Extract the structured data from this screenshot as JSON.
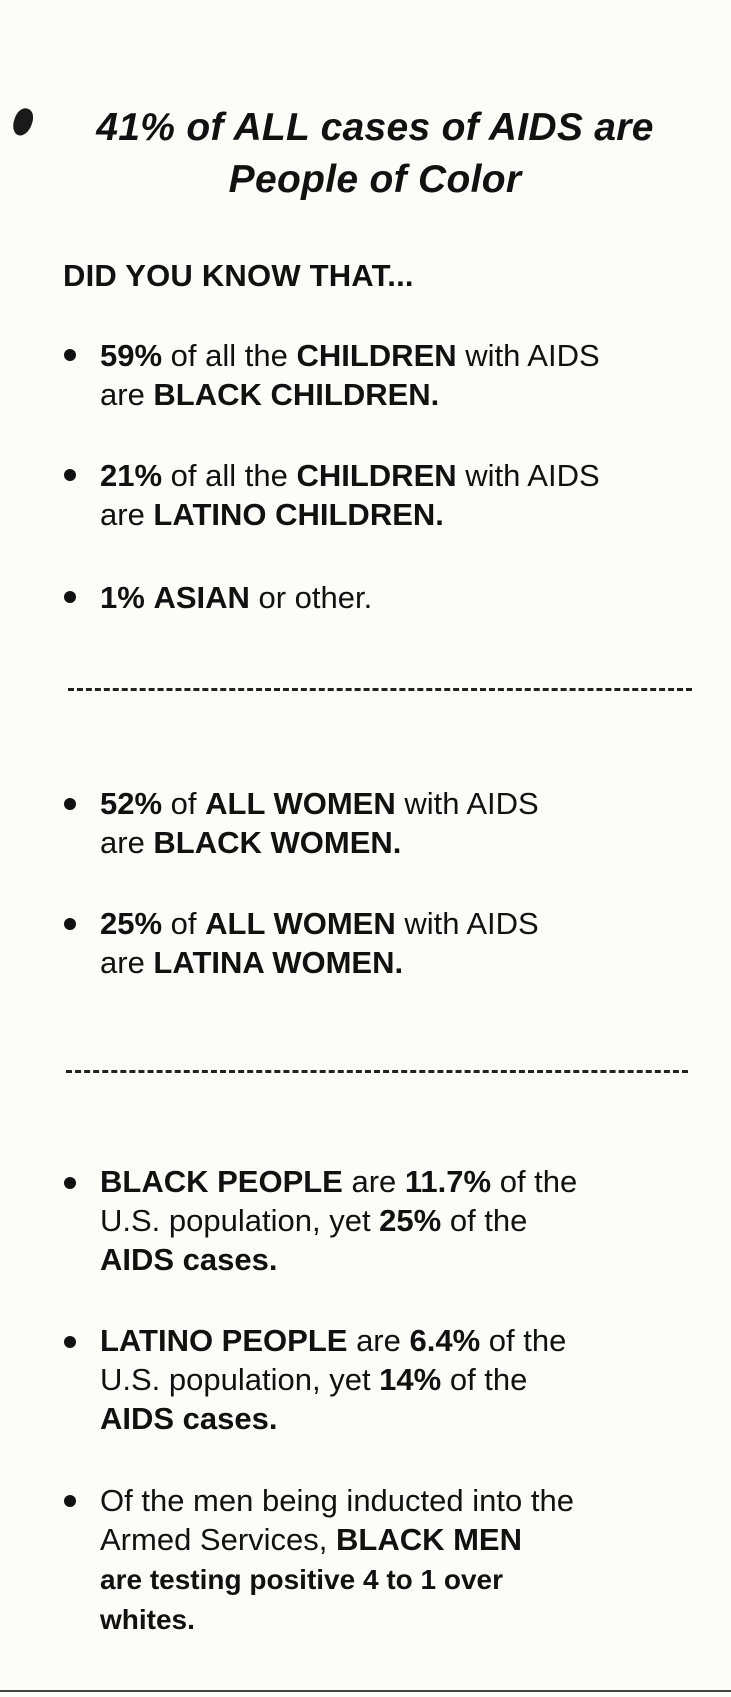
{
  "title": {
    "line1": "41% of ALL cases of AIDS are",
    "line2": "People of Color"
  },
  "intro": "DID YOU KNOW THAT...",
  "children_section": [
    {
      "pct": "59%",
      "t1": " of all the ",
      "group": "CHILDREN",
      "t2": " with AIDS",
      "t3": "are ",
      "who": "BLACK CHILDREN."
    },
    {
      "pct": "21%",
      "t1": " of all the ",
      "group": "CHILDREN",
      "t2": " with AIDS",
      "t3": "are ",
      "who": "LATINO CHILDREN."
    },
    {
      "pct": "1%",
      "t1": " ",
      "who": "ASIAN",
      "t2": " or other."
    }
  ],
  "women_section": [
    {
      "pct": "52%",
      "t1": " of ",
      "group": "ALL WOMEN",
      "t2": " with AIDS",
      "t3": "are ",
      "who": "BLACK WOMEN."
    },
    {
      "pct": "25%",
      "t1": " of ",
      "group": "ALL WOMEN",
      "t2": " with AIDS",
      "t3": "are ",
      "who": "LATINA WOMEN."
    }
  ],
  "population_section": [
    {
      "who": "BLACK PEOPLE",
      "t1": " are ",
      "pop": "11.7%",
      "t2": " of the",
      "t3": "U.S. population, yet ",
      "cases_pct": "25%",
      "t4": " of the",
      "cases": "AIDS cases."
    },
    {
      "who": "LATINO PEOPLE",
      "t1": " are ",
      "pop": "6.4%",
      "t2": " of the",
      "t3": "U.S. population, yet ",
      "cases_pct": "14%",
      "t4": " of the",
      "cases": "AIDS cases."
    }
  ],
  "armed_services": {
    "l1": "Of the men being inducted into the",
    "l2a": "Armed Services, ",
    "l2b": "BLACK MEN",
    "l3": "are testing positive 4 to 1 over",
    "l4": "whites."
  }
}
